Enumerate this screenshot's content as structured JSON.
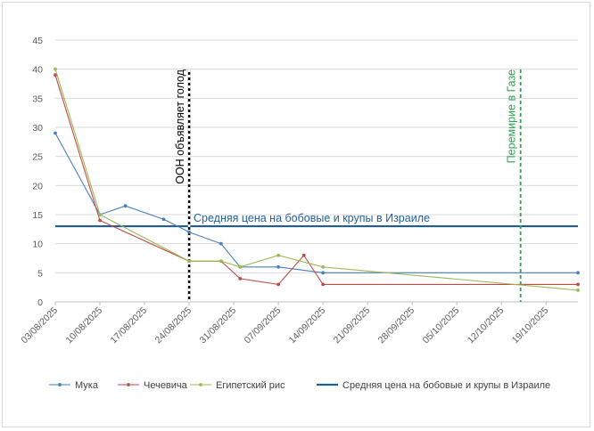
{
  "chart_data": {
    "type": "line",
    "ylim": [
      0,
      45
    ],
    "yticks": [
      0,
      5,
      10,
      15,
      20,
      25,
      30,
      35,
      40,
      45
    ],
    "x_tick_labels": [
      "03/08/2025",
      "10/08/2025",
      "17/08/2025",
      "24/08/2025",
      "31/08/2025",
      "07/09/2025",
      "14/09/2025",
      "21/09/2025",
      "28/09/2025",
      "05/10/2025",
      "12/10/2025",
      "19/10/2025"
    ],
    "x_range": [
      "2025-08-03",
      "2025-10-24"
    ],
    "grid": "horizontal",
    "legend_position": "bottom",
    "series": [
      {
        "name": "Мука",
        "color": "#4a7ebb",
        "points": [
          [
            "2025-08-03",
            29
          ],
          [
            "2025-08-10",
            15
          ],
          [
            "2025-08-14",
            16.5
          ],
          [
            "2025-08-20",
            14.2
          ],
          [
            "2025-08-24",
            12
          ],
          [
            "2025-08-29",
            10
          ],
          [
            "2025-09-01",
            6
          ],
          [
            "2025-09-07",
            6
          ],
          [
            "2025-09-14",
            5
          ],
          [
            "2025-10-24",
            5
          ]
        ]
      },
      {
        "name": "Чечевича",
        "color": "#be4b48",
        "points": [
          [
            "2025-08-03",
            39
          ],
          [
            "2025-08-10",
            14
          ],
          [
            "2025-08-24",
            7
          ],
          [
            "2025-08-29",
            7
          ],
          [
            "2025-09-01",
            4
          ],
          [
            "2025-09-07",
            3
          ],
          [
            "2025-09-11",
            8
          ],
          [
            "2025-09-14",
            3
          ],
          [
            "2025-10-24",
            3
          ]
        ]
      },
      {
        "name": "Египетский рис",
        "color": "#98b954",
        "points": [
          [
            "2025-08-03",
            40
          ],
          [
            "2025-08-10",
            15
          ],
          [
            "2025-08-24",
            7
          ],
          [
            "2025-08-29",
            7
          ],
          [
            "2025-09-01",
            6
          ],
          [
            "2025-09-07",
            8
          ],
          [
            "2025-09-14",
            6
          ],
          [
            "2025-10-24",
            2
          ]
        ]
      }
    ],
    "reference_line": {
      "name": "Средняя цена на бобовые и крупы в Израиле",
      "value": 13,
      "color": "#1f5f99"
    },
    "annotations": [
      {
        "text": "ООН объявляет голод",
        "x": "2025-08-24",
        "color": "#000000",
        "style": "dashed-black-white"
      },
      {
        "text": "Перемирие в Газе",
        "x": "2025-10-15",
        "color": "#2ea44f",
        "style": "dashed"
      }
    ]
  }
}
